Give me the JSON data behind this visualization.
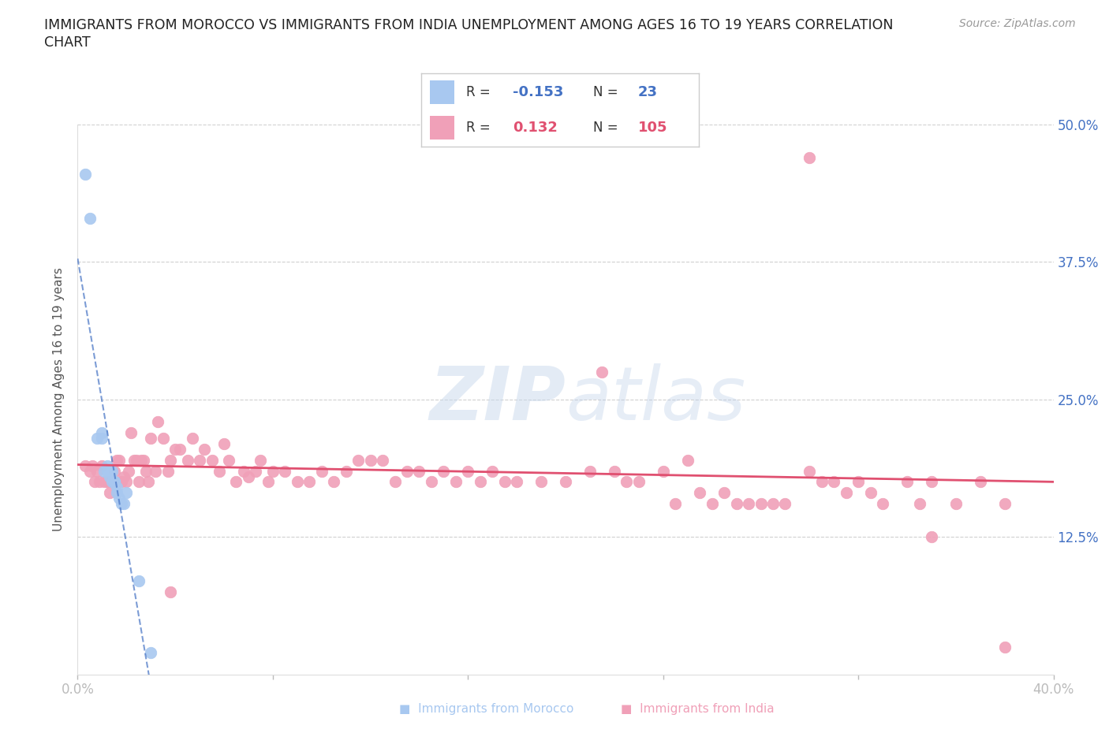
{
  "title_line1": "IMMIGRANTS FROM MOROCCO VS IMMIGRANTS FROM INDIA UNEMPLOYMENT AMONG AGES 16 TO 19 YEARS CORRELATION",
  "title_line2": "CHART",
  "source_text": "Source: ZipAtlas.com",
  "ylabel": "Unemployment Among Ages 16 to 19 years",
  "xlim": [
    0.0,
    0.4
  ],
  "ylim": [
    0.0,
    0.5
  ],
  "yticks": [
    0.0,
    0.125,
    0.25,
    0.375,
    0.5
  ],
  "ytick_labels": [
    "",
    "12.5%",
    "25.0%",
    "37.5%",
    "50.0%"
  ],
  "xticks": [
    0.0,
    0.08,
    0.16,
    0.24,
    0.32,
    0.4
  ],
  "xtick_labels": [
    "0.0%",
    "",
    "",
    "",
    "",
    "40.0%"
  ],
  "morocco_color": "#a8c8f0",
  "india_color": "#f0a0b8",
  "morocco_trend_color": "#4472c4",
  "india_trend_color": "#e05070",
  "background_color": "#ffffff",
  "grid_color": "#d0d0d0",
  "watermark_color": "#c8d8ec",
  "morocco_x": [
    0.003,
    0.005,
    0.008,
    0.01,
    0.01,
    0.011,
    0.012,
    0.012,
    0.013,
    0.013,
    0.014,
    0.014,
    0.015,
    0.015,
    0.015,
    0.016,
    0.016,
    0.017,
    0.018,
    0.019,
    0.02,
    0.025,
    0.03
  ],
  "morocco_y": [
    0.455,
    0.415,
    0.215,
    0.215,
    0.22,
    0.185,
    0.185,
    0.19,
    0.185,
    0.18,
    0.175,
    0.185,
    0.175,
    0.175,
    0.175,
    0.17,
    0.165,
    0.16,
    0.155,
    0.155,
    0.165,
    0.085,
    0.02
  ],
  "india_x": [
    0.003,
    0.005,
    0.006,
    0.007,
    0.008,
    0.009,
    0.01,
    0.011,
    0.012,
    0.013,
    0.014,
    0.015,
    0.016,
    0.017,
    0.018,
    0.019,
    0.02,
    0.021,
    0.022,
    0.023,
    0.024,
    0.025,
    0.026,
    0.027,
    0.028,
    0.029,
    0.03,
    0.032,
    0.033,
    0.035,
    0.037,
    0.038,
    0.04,
    0.042,
    0.045,
    0.047,
    0.05,
    0.052,
    0.055,
    0.058,
    0.06,
    0.062,
    0.065,
    0.068,
    0.07,
    0.073,
    0.075,
    0.078,
    0.08,
    0.085,
    0.09,
    0.095,
    0.1,
    0.105,
    0.11,
    0.115,
    0.12,
    0.125,
    0.13,
    0.135,
    0.14,
    0.145,
    0.15,
    0.155,
    0.16,
    0.165,
    0.17,
    0.175,
    0.18,
    0.19,
    0.2,
    0.21,
    0.215,
    0.22,
    0.225,
    0.23,
    0.24,
    0.245,
    0.25,
    0.255,
    0.26,
    0.265,
    0.27,
    0.275,
    0.28,
    0.285,
    0.29,
    0.3,
    0.305,
    0.31,
    0.315,
    0.32,
    0.325,
    0.33,
    0.34,
    0.345,
    0.35,
    0.36,
    0.37,
    0.38,
    0.25,
    0.3,
    0.35,
    0.038,
    0.38
  ],
  "india_y": [
    0.19,
    0.185,
    0.19,
    0.175,
    0.185,
    0.175,
    0.19,
    0.175,
    0.175,
    0.165,
    0.175,
    0.185,
    0.195,
    0.195,
    0.175,
    0.18,
    0.175,
    0.185,
    0.22,
    0.195,
    0.195,
    0.175,
    0.195,
    0.195,
    0.185,
    0.175,
    0.215,
    0.185,
    0.23,
    0.215,
    0.185,
    0.195,
    0.205,
    0.205,
    0.195,
    0.215,
    0.195,
    0.205,
    0.195,
    0.185,
    0.21,
    0.195,
    0.175,
    0.185,
    0.18,
    0.185,
    0.195,
    0.175,
    0.185,
    0.185,
    0.175,
    0.175,
    0.185,
    0.175,
    0.185,
    0.195,
    0.195,
    0.195,
    0.175,
    0.185,
    0.185,
    0.175,
    0.185,
    0.175,
    0.185,
    0.175,
    0.185,
    0.175,
    0.175,
    0.175,
    0.175,
    0.185,
    0.275,
    0.185,
    0.175,
    0.175,
    0.185,
    0.155,
    0.195,
    0.165,
    0.155,
    0.165,
    0.155,
    0.155,
    0.155,
    0.155,
    0.155,
    0.185,
    0.175,
    0.175,
    0.165,
    0.175,
    0.165,
    0.155,
    0.175,
    0.155,
    0.175,
    0.155,
    0.175,
    0.155,
    0.49,
    0.47,
    0.125,
    0.075,
    0.025
  ]
}
